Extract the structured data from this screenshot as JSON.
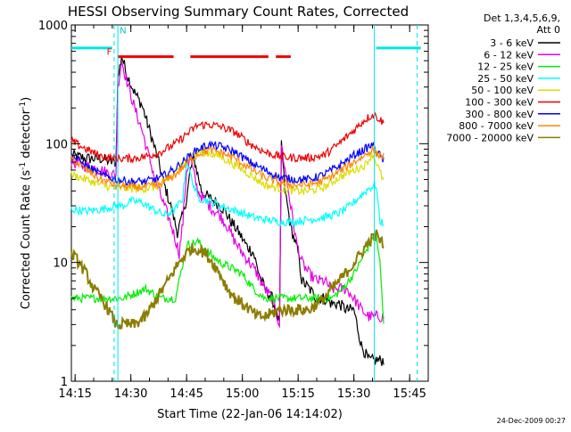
{
  "chart_data": {
    "type": "line",
    "title": "HESSI Observing Summary Count Rates, Corrected",
    "xlabel": "Start Time (22-Jan-06 14:14:02)",
    "ylabel_main": "Corrected Count Rate (s",
    "ylabel_sup1": "-1",
    "ylabel_mid": " detector",
    "ylabel_sup2": "-1",
    "ylabel_end": ")",
    "y_scale": "log",
    "ylim": [
      1,
      1000
    ],
    "xlim_minutes": [
      0,
      96
    ],
    "x_ticks": [
      {
        "t": 1,
        "label": "14:15"
      },
      {
        "t": 16,
        "label": "14:30"
      },
      {
        "t": 31,
        "label": "14:45"
      },
      {
        "t": 46,
        "label": "15:00"
      },
      {
        "t": 61,
        "label": "15:15"
      },
      {
        "t": 76,
        "label": "15:30"
      },
      {
        "t": 91,
        "label": "15:45"
      }
    ],
    "y_ticks": [
      {
        "v": 1,
        "label": "1"
      },
      {
        "v": 10,
        "label": "10"
      },
      {
        "v": 100,
        "label": "100"
      },
      {
        "v": 1000,
        "label": "1000"
      }
    ],
    "legend_header": [
      "Det 1,3,4,5,6,9,",
      "Att 0"
    ],
    "legend_position": "right",
    "series": [
      {
        "name": "3 - 6 keV",
        "color": "#000000",
        "points": [
          [
            0,
            80
          ],
          [
            4,
            75
          ],
          [
            8,
            75
          ],
          [
            11,
            70
          ],
          [
            12,
            70
          ],
          [
            12.5,
            350
          ],
          [
            13.5,
            550
          ],
          [
            15,
            380
          ],
          [
            17,
            270
          ],
          [
            19,
            210
          ],
          [
            21,
            130
          ],
          [
            23,
            80
          ],
          [
            25,
            45
          ],
          [
            27,
            28
          ],
          [
            28.5,
            18
          ],
          [
            30,
            25
          ],
          [
            31,
            35
          ],
          [
            32,
            60
          ],
          [
            33,
            75
          ],
          [
            35,
            40
          ],
          [
            37,
            35
          ],
          [
            39,
            32
          ],
          [
            41,
            28
          ],
          [
            43,
            22
          ],
          [
            45,
            18
          ],
          [
            47,
            14
          ],
          [
            49,
            12
          ],
          [
            50,
            9
          ],
          [
            52,
            6
          ],
          [
            54,
            5
          ],
          [
            56,
            3
          ],
          [
            56.5,
            100
          ],
          [
            57.5,
            40
          ],
          [
            59,
            20
          ],
          [
            61,
            12
          ],
          [
            62,
            7
          ],
          [
            64,
            6
          ],
          [
            66,
            5
          ],
          [
            68,
            5
          ],
          [
            70,
            4.5
          ],
          [
            72,
            4.5
          ],
          [
            74,
            4
          ],
          [
            76,
            4
          ],
          [
            78,
            2
          ],
          [
            80,
            1.5
          ],
          [
            82,
            1.5
          ],
          [
            84,
            1.5
          ]
        ]
      },
      {
        "name": "6 - 12 keV",
        "color": "#e600e6",
        "points": [
          [
            0,
            70
          ],
          [
            4,
            65
          ],
          [
            8,
            60
          ],
          [
            11,
            55
          ],
          [
            12,
            55
          ],
          [
            12.5,
            300
          ],
          [
            13.5,
            500
          ],
          [
            15,
            330
          ],
          [
            17,
            200
          ],
          [
            19,
            130
          ],
          [
            21,
            75
          ],
          [
            23,
            45
          ],
          [
            25,
            30
          ],
          [
            27,
            20
          ],
          [
            29,
            12
          ],
          [
            30,
            22
          ],
          [
            31,
            60
          ],
          [
            32,
            75
          ],
          [
            34,
            40
          ],
          [
            36,
            33
          ],
          [
            38,
            28
          ],
          [
            40,
            25
          ],
          [
            42,
            20
          ],
          [
            44,
            15
          ],
          [
            46,
            12
          ],
          [
            48,
            10
          ],
          [
            50,
            8
          ],
          [
            52,
            6
          ],
          [
            54,
            5
          ],
          [
            56,
            3
          ],
          [
            56.5,
            100
          ],
          [
            57.5,
            60
          ],
          [
            59,
            30
          ],
          [
            60.5,
            15
          ],
          [
            62,
            10
          ],
          [
            64,
            8
          ],
          [
            66,
            7
          ],
          [
            68,
            7
          ],
          [
            70,
            6
          ],
          [
            72,
            6
          ],
          [
            74,
            6
          ],
          [
            76,
            5
          ],
          [
            78,
            4
          ],
          [
            80,
            3.5
          ],
          [
            82,
            3.5
          ],
          [
            84,
            3.5
          ]
        ]
      },
      {
        "name": "12 - 25 keV",
        "color": "#00ee00",
        "points": [
          [
            0,
            5
          ],
          [
            8,
            5
          ],
          [
            10,
            5
          ],
          [
            12,
            5
          ],
          [
            14,
            5
          ],
          [
            17,
            5.5
          ],
          [
            20,
            6
          ],
          [
            24,
            5
          ],
          [
            28,
            5
          ],
          [
            31,
            14
          ],
          [
            34,
            15
          ],
          [
            37,
            12
          ],
          [
            40,
            10
          ],
          [
            43,
            9
          ],
          [
            46,
            8
          ],
          [
            49,
            6
          ],
          [
            52,
            5
          ],
          [
            56,
            5
          ],
          [
            60,
            5
          ],
          [
            64,
            5
          ],
          [
            67,
            5
          ],
          [
            70,
            5
          ],
          [
            73,
            6
          ],
          [
            76,
            8
          ],
          [
            79,
            12
          ],
          [
            81,
            16
          ],
          [
            82,
            17
          ],
          [
            83,
            10
          ],
          [
            84,
            3
          ]
        ]
      },
      {
        "name": "25 - 50 keV",
        "color": "#00ffff",
        "points": [
          [
            0,
            28
          ],
          [
            4,
            27
          ],
          [
            8,
            28
          ],
          [
            12,
            30
          ],
          [
            14,
            30
          ],
          [
            16,
            33
          ],
          [
            19,
            32
          ],
          [
            22,
            28
          ],
          [
            25,
            25
          ],
          [
            28,
            28
          ],
          [
            30,
            35
          ],
          [
            31,
            75
          ],
          [
            32,
            55
          ],
          [
            34,
            35
          ],
          [
            37,
            33
          ],
          [
            40,
            30
          ],
          [
            43,
            28
          ],
          [
            46,
            26
          ],
          [
            49,
            24
          ],
          [
            52,
            23
          ],
          [
            56,
            22
          ],
          [
            60,
            22
          ],
          [
            64,
            23
          ],
          [
            68,
            24
          ],
          [
            72,
            26
          ],
          [
            75,
            30
          ],
          [
            78,
            37
          ],
          [
            80,
            42
          ],
          [
            82,
            45
          ],
          [
            83,
            22
          ],
          [
            84,
            22
          ]
        ]
      },
      {
        "name": "50 - 100 keV",
        "color": "#dddd00",
        "points": [
          [
            0,
            55
          ],
          [
            4,
            50
          ],
          [
            8,
            45
          ],
          [
            12,
            42
          ],
          [
            16,
            42
          ],
          [
            20,
            42
          ],
          [
            24,
            44
          ],
          [
            28,
            55
          ],
          [
            31,
            75
          ],
          [
            34,
            85
          ],
          [
            37,
            83
          ],
          [
            40,
            78
          ],
          [
            44,
            66
          ],
          [
            48,
            55
          ],
          [
            52,
            45
          ],
          [
            56,
            42
          ],
          [
            60,
            40
          ],
          [
            64,
            40
          ],
          [
            68,
            43
          ],
          [
            72,
            52
          ],
          [
            76,
            60
          ],
          [
            79,
            66
          ],
          [
            81,
            82
          ],
          [
            82,
            70
          ],
          [
            84,
            48
          ]
        ]
      },
      {
        "name": "100 - 300 keV",
        "color": "#ee0000",
        "points": [
          [
            0,
            105
          ],
          [
            4,
            90
          ],
          [
            8,
            78
          ],
          [
            12,
            75
          ],
          [
            16,
            75
          ],
          [
            20,
            78
          ],
          [
            24,
            85
          ],
          [
            28,
            100
          ],
          [
            31,
            120
          ],
          [
            34,
            143
          ],
          [
            37,
            145
          ],
          [
            40,
            140
          ],
          [
            44,
            125
          ],
          [
            48,
            100
          ],
          [
            52,
            85
          ],
          [
            56,
            78
          ],
          [
            60,
            76
          ],
          [
            64,
            76
          ],
          [
            68,
            80
          ],
          [
            72,
            100
          ],
          [
            76,
            130
          ],
          [
            79,
            160
          ],
          [
            81,
            175
          ],
          [
            82,
            170
          ],
          [
            84,
            150
          ]
        ]
      },
      {
        "name": "300 - 800 keV",
        "color": "#0000ff",
        "points": [
          [
            0,
            80
          ],
          [
            4,
            65
          ],
          [
            8,
            55
          ],
          [
            12,
            50
          ],
          [
            16,
            48
          ],
          [
            20,
            48
          ],
          [
            24,
            52
          ],
          [
            28,
            62
          ],
          [
            31,
            75
          ],
          [
            34,
            90
          ],
          [
            37,
            98
          ],
          [
            40,
            95
          ],
          [
            44,
            85
          ],
          [
            48,
            70
          ],
          [
            52,
            60
          ],
          [
            56,
            52
          ],
          [
            60,
            50
          ],
          [
            64,
            50
          ],
          [
            68,
            55
          ],
          [
            72,
            65
          ],
          [
            76,
            80
          ],
          [
            79,
            90
          ],
          [
            81,
            98
          ],
          [
            82,
            88
          ],
          [
            84,
            72
          ]
        ]
      },
      {
        "name": "800 - 7000 keV",
        "color": "#ff8800",
        "points": [
          [
            0,
            75
          ],
          [
            4,
            60
          ],
          [
            8,
            50
          ],
          [
            12,
            45
          ],
          [
            16,
            43
          ],
          [
            20,
            43
          ],
          [
            24,
            46
          ],
          [
            28,
            55
          ],
          [
            31,
            68
          ],
          [
            34,
            82
          ],
          [
            37,
            88
          ],
          [
            40,
            85
          ],
          [
            44,
            75
          ],
          [
            48,
            62
          ],
          [
            52,
            52
          ],
          [
            56,
            47
          ],
          [
            60,
            45
          ],
          [
            64,
            45
          ],
          [
            68,
            49
          ],
          [
            72,
            58
          ],
          [
            76,
            70
          ],
          [
            79,
            80
          ],
          [
            81,
            90
          ],
          [
            82,
            82
          ],
          [
            84,
            78
          ]
        ]
      },
      {
        "name": "7000 - 20000 keV",
        "color": "#8b7d00",
        "points": [
          [
            0,
            12
          ],
          [
            2,
            10
          ],
          [
            4,
            8
          ],
          [
            6,
            6
          ],
          [
            8,
            5
          ],
          [
            10,
            4
          ],
          [
            12,
            3
          ],
          [
            14,
            3
          ],
          [
            17,
            3
          ],
          [
            20,
            3.5
          ],
          [
            23,
            5
          ],
          [
            26,
            7
          ],
          [
            28,
            9
          ],
          [
            30,
            11
          ],
          [
            32,
            13
          ],
          [
            34,
            13
          ],
          [
            36,
            12
          ],
          [
            38,
            10
          ],
          [
            40,
            8
          ],
          [
            42,
            6
          ],
          [
            44,
            5
          ],
          [
            46,
            4.5
          ],
          [
            48,
            4
          ],
          [
            50,
            3.5
          ],
          [
            52,
            3.5
          ],
          [
            56,
            4
          ],
          [
            60,
            4
          ],
          [
            64,
            4
          ],
          [
            68,
            5
          ],
          [
            72,
            7
          ],
          [
            75,
            9
          ],
          [
            78,
            12
          ],
          [
            80,
            15
          ],
          [
            82,
            17
          ],
          [
            84,
            14
          ]
        ]
      }
    ],
    "annotations": {
      "flags_left_label": "F",
      "flags_right_label": "N"
    }
  },
  "footer": {
    "date_stamp": "24-Dec-2009 00:27"
  }
}
